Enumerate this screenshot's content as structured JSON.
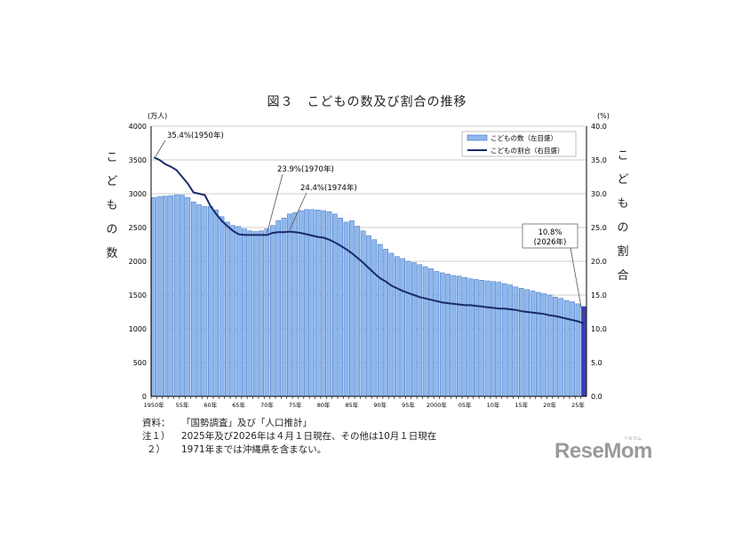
{
  "title": "図３　こどもの数及び割合の推移",
  "left_axis_label_chars": [
    "こ",
    "ど",
    "も",
    "の",
    "数"
  ],
  "right_axis_label_chars": [
    "こ",
    "ど",
    "も",
    "の",
    "割",
    "合"
  ],
  "left_unit": "(万人)",
  "right_unit": "(%)",
  "notes": [
    {
      "key": "資料：",
      "text": "「国勢調査」及び「人口推計」"
    },
    {
      "key": "注１）",
      "text": "2025年及び2026年は４月１日現在、その他は10月１日現在"
    },
    {
      "key": "２）",
      "text": "1971年までは沖縄県を含まない。"
    }
  ],
  "logo": "ReseMom",
  "logo_sub": "リセマム",
  "colors": {
    "bar": "#8fb8ec",
    "bar_edge": "#3a6fc4",
    "bar_last": "#3b3bb8",
    "line": "#1a2a6c"
  },
  "chart_data": {
    "type": "bar",
    "x": [
      1950,
      1951,
      1952,
      1953,
      1954,
      1955,
      1956,
      1957,
      1958,
      1959,
      1960,
      1961,
      1962,
      1963,
      1964,
      1965,
      1966,
      1967,
      1968,
      1969,
      1970,
      1971,
      1972,
      1973,
      1974,
      1975,
      1976,
      1977,
      1978,
      1979,
      1980,
      1981,
      1982,
      1983,
      1984,
      1985,
      1986,
      1987,
      1988,
      1989,
      1990,
      1991,
      1992,
      1993,
      1994,
      1995,
      1996,
      1997,
      1998,
      1999,
      2000,
      2001,
      2002,
      2003,
      2004,
      2005,
      2006,
      2007,
      2008,
      2009,
      2010,
      2011,
      2012,
      2013,
      2014,
      2015,
      2016,
      2017,
      2018,
      2019,
      2020,
      2021,
      2022,
      2023,
      2024,
      2025,
      2026
    ],
    "x_tick_labels": [
      "1950年",
      "55年",
      "60年",
      "65年",
      "70年",
      "75年",
      "80年",
      "85年",
      "90年",
      "95年",
      "2000年",
      "05年",
      "10年",
      "15年",
      "20年",
      "25年"
    ],
    "x_tick_years": [
      1950,
      1955,
      1960,
      1965,
      1970,
      1975,
      1980,
      1985,
      1990,
      1995,
      2000,
      2005,
      2010,
      2015,
      2020,
      2025
    ],
    "series": [
      {
        "name": "こどもの数（左目盛）",
        "type": "bar",
        "axis": "left",
        "values": [
          2943,
          2960,
          2965,
          2972,
          2985,
          2980,
          2945,
          2880,
          2840,
          2810,
          2810,
          2760,
          2660,
          2580,
          2530,
          2515,
          2480,
          2450,
          2440,
          2450,
          2480,
          2530,
          2600,
          2640,
          2700,
          2720,
          2750,
          2765,
          2765,
          2760,
          2750,
          2735,
          2700,
          2640,
          2580,
          2600,
          2520,
          2450,
          2380,
          2320,
          2250,
          2180,
          2120,
          2070,
          2040,
          2000,
          1980,
          1950,
          1920,
          1890,
          1850,
          1830,
          1810,
          1790,
          1780,
          1760,
          1740,
          1730,
          1720,
          1710,
          1700,
          1690,
          1670,
          1650,
          1620,
          1600,
          1580,
          1560,
          1540,
          1520,
          1500,
          1470,
          1450,
          1420,
          1400,
          1370,
          1330
        ]
      },
      {
        "name": "こどもの割合（右目盛）",
        "type": "line",
        "axis": "right",
        "values": [
          35.4,
          35.0,
          34.4,
          34.0,
          33.5,
          32.5,
          31.5,
          30.2,
          30.0,
          29.8,
          28.2,
          27.0,
          26.0,
          25.2,
          24.5,
          24.0,
          23.9,
          23.9,
          23.9,
          23.9,
          23.9,
          24.2,
          24.3,
          24.3,
          24.4,
          24.3,
          24.2,
          24.0,
          23.8,
          23.6,
          23.5,
          23.2,
          22.8,
          22.3,
          21.8,
          21.2,
          20.5,
          19.8,
          19.0,
          18.2,
          17.5,
          17.0,
          16.4,
          16.0,
          15.6,
          15.3,
          15.0,
          14.7,
          14.5,
          14.3,
          14.1,
          13.9,
          13.8,
          13.7,
          13.6,
          13.5,
          13.5,
          13.4,
          13.3,
          13.2,
          13.1,
          13.0,
          13.0,
          12.9,
          12.8,
          12.6,
          12.5,
          12.4,
          12.3,
          12.2,
          12.0,
          11.9,
          11.7,
          11.5,
          11.3,
          11.1,
          10.8
        ]
      }
    ],
    "left_ylim": [
      0,
      4000
    ],
    "left_ticks": [
      "0",
      "500",
      "1000",
      "1500",
      "2000",
      "2500",
      "3000",
      "3500",
      "4000"
    ],
    "right_ylim": [
      0,
      40
    ],
    "right_ticks": [
      "0.0",
      "5.0",
      "10.0",
      "15.0",
      "20.0",
      "25.0",
      "30.0",
      "35.0",
      "40.0"
    ],
    "annotations": [
      {
        "text": "35.4%(1950年)",
        "year": 1950
      },
      {
        "text": "23.9%(1970年)",
        "year": 1970
      },
      {
        "text": "24.4%(1974年)",
        "year": 1974
      },
      {
        "text_lines": [
          "10.8%",
          "(2026年)"
        ],
        "year": 2026
      }
    ],
    "legend": {
      "position": "top-right",
      "entries": [
        "こどもの数（左目盛）",
        "こどもの割合（右目盛）"
      ]
    },
    "grid": true
  }
}
